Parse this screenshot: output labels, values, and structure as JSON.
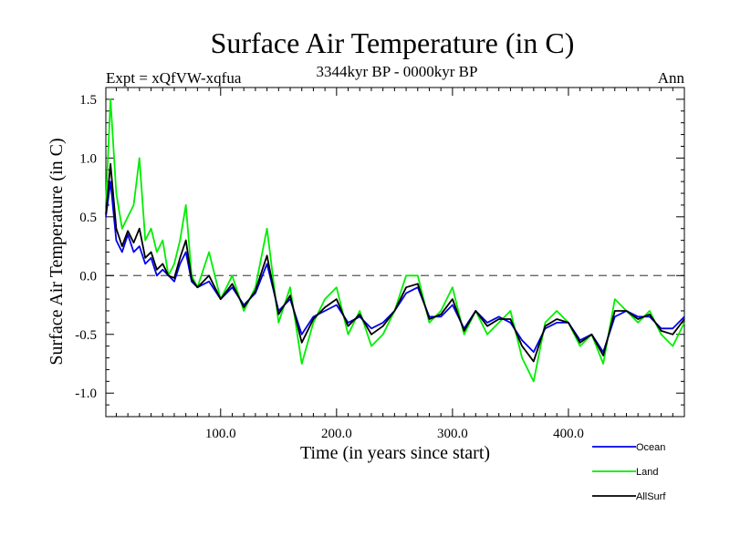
{
  "chart_data": {
    "type": "line",
    "title": "Surface Air Temperature (in C)",
    "subtitle_left": "Expt = xQfVW-xqfua",
    "subtitle_center": "3344kyr BP - 0000kyr BP",
    "subtitle_right": "Ann",
    "xlabel": "Time (in years since start)",
    "ylabel": "Surface Air Temperature (in C)",
    "xlim": [
      1,
      500
    ],
    "ylim": [
      -1.2,
      1.6
    ],
    "xticks": [
      100,
      200,
      300,
      400
    ],
    "xtick_labels": [
      "100.0",
      "200.0",
      "300.0",
      "400.0"
    ],
    "yticks": [
      -1.0,
      -0.5,
      0.0,
      0.5,
      1.0,
      1.5
    ],
    "ytick_labels": [
      "-1.0",
      "-0.5",
      "0.0",
      "0.5",
      "1.0",
      "1.5"
    ],
    "reference_line": 0.0,
    "legend_position": "bottom-right",
    "series": [
      {
        "name": "Land",
        "color": "#00ee00",
        "x": [
          1,
          5,
          10,
          15,
          20,
          25,
          30,
          35,
          40,
          45,
          50,
          55,
          60,
          65,
          70,
          75,
          80,
          90,
          100,
          110,
          120,
          130,
          140,
          150,
          160,
          170,
          180,
          190,
          200,
          210,
          220,
          230,
          240,
          250,
          260,
          270,
          280,
          290,
          300,
          310,
          320,
          330,
          340,
          350,
          360,
          370,
          380,
          390,
          400,
          410,
          420,
          430,
          440,
          450,
          460,
          470,
          480,
          490,
          500
        ],
        "values": [
          0.6,
          1.5,
          0.7,
          0.4,
          0.5,
          0.6,
          1.0,
          0.3,
          0.4,
          0.2,
          0.3,
          0.0,
          0.1,
          0.3,
          0.6,
          0.0,
          -0.1,
          0.2,
          -0.2,
          0.0,
          -0.3,
          -0.1,
          0.4,
          -0.4,
          -0.1,
          -0.75,
          -0.4,
          -0.2,
          -0.1,
          -0.5,
          -0.3,
          -0.6,
          -0.5,
          -0.3,
          0.0,
          0.0,
          -0.4,
          -0.3,
          -0.1,
          -0.5,
          -0.3,
          -0.5,
          -0.4,
          -0.3,
          -0.7,
          -0.9,
          -0.4,
          -0.3,
          -0.4,
          -0.6,
          -0.5,
          -0.75,
          -0.2,
          -0.3,
          -0.4,
          -0.3,
          -0.5,
          -0.6,
          -0.4
        ]
      },
      {
        "name": "Ocean",
        "color": "#0000ee",
        "x": [
          1,
          5,
          10,
          15,
          20,
          25,
          30,
          35,
          40,
          45,
          50,
          55,
          60,
          65,
          70,
          75,
          80,
          90,
          100,
          110,
          120,
          130,
          140,
          150,
          160,
          170,
          180,
          190,
          200,
          210,
          220,
          230,
          240,
          250,
          260,
          270,
          280,
          290,
          300,
          310,
          320,
          330,
          340,
          350,
          360,
          370,
          380,
          390,
          400,
          410,
          420,
          430,
          440,
          450,
          460,
          470,
          480,
          490,
          500
        ],
        "values": [
          0.5,
          0.8,
          0.3,
          0.2,
          0.35,
          0.2,
          0.25,
          0.1,
          0.15,
          0.0,
          0.05,
          0.0,
          -0.05,
          0.1,
          0.2,
          -0.05,
          -0.1,
          -0.05,
          -0.2,
          -0.1,
          -0.25,
          -0.15,
          0.1,
          -0.3,
          -0.2,
          -0.5,
          -0.35,
          -0.3,
          -0.25,
          -0.4,
          -0.35,
          -0.45,
          -0.4,
          -0.3,
          -0.15,
          -0.1,
          -0.35,
          -0.35,
          -0.25,
          -0.45,
          -0.3,
          -0.4,
          -0.35,
          -0.4,
          -0.55,
          -0.65,
          -0.45,
          -0.4,
          -0.4,
          -0.55,
          -0.5,
          -0.65,
          -0.35,
          -0.3,
          -0.35,
          -0.35,
          -0.45,
          -0.45,
          -0.35
        ]
      },
      {
        "name": "AllSurf",
        "color": "#000000",
        "x": [
          1,
          5,
          10,
          15,
          20,
          25,
          30,
          35,
          40,
          45,
          50,
          55,
          60,
          65,
          70,
          75,
          80,
          90,
          100,
          110,
          120,
          130,
          140,
          150,
          160,
          170,
          180,
          190,
          200,
          210,
          220,
          230,
          240,
          250,
          260,
          270,
          280,
          290,
          300,
          310,
          320,
          330,
          340,
          350,
          360,
          370,
          380,
          390,
          400,
          410,
          420,
          430,
          440,
          450,
          460,
          470,
          480,
          490,
          500
        ],
        "values": [
          0.52,
          0.95,
          0.4,
          0.25,
          0.38,
          0.28,
          0.4,
          0.15,
          0.2,
          0.05,
          0.1,
          0.0,
          -0.02,
          0.15,
          0.3,
          -0.03,
          -0.1,
          0.0,
          -0.2,
          -0.07,
          -0.27,
          -0.13,
          0.17,
          -0.33,
          -0.17,
          -0.57,
          -0.37,
          -0.27,
          -0.2,
          -0.43,
          -0.33,
          -0.5,
          -0.43,
          -0.3,
          -0.1,
          -0.07,
          -0.37,
          -0.33,
          -0.2,
          -0.47,
          -0.3,
          -0.43,
          -0.37,
          -0.37,
          -0.6,
          -0.73,
          -0.43,
          -0.37,
          -0.4,
          -0.57,
          -0.5,
          -0.68,
          -0.3,
          -0.3,
          -0.37,
          -0.33,
          -0.47,
          -0.5,
          -0.37
        ]
      }
    ]
  }
}
